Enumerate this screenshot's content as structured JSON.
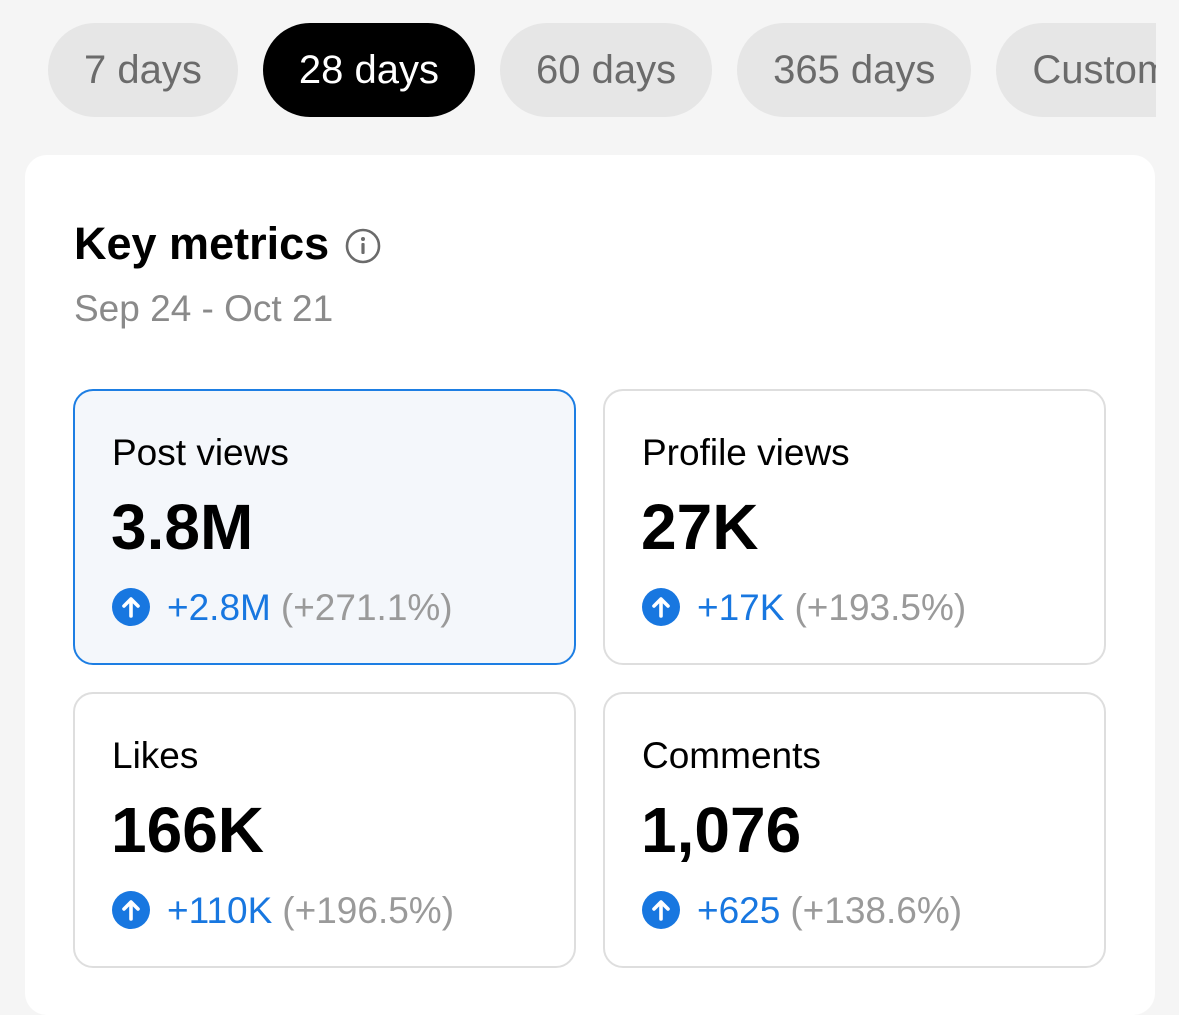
{
  "range_tabs": [
    {
      "label": "7 days",
      "active": false
    },
    {
      "label": "28 days",
      "active": true
    },
    {
      "label": "60 days",
      "active": false
    },
    {
      "label": "365 days",
      "active": false
    },
    {
      "label": "Custom",
      "active": false
    }
  ],
  "key_metrics": {
    "title": "Key metrics",
    "info_icon": "info-icon",
    "date_range": "Sep 24 - Oct 21",
    "metrics": [
      {
        "label": "Post views",
        "value": "3.8M",
        "change": "+2.8M",
        "change_pct": "(+271.1%)",
        "selected": true
      },
      {
        "label": "Profile views",
        "value": "27K",
        "change": "+17K",
        "change_pct": "(+193.5%)",
        "selected": false
      },
      {
        "label": "Likes",
        "value": "166K",
        "change": "+110K",
        "change_pct": "(+196.5%)",
        "selected": false
      },
      {
        "label": "Comments",
        "value": "1,076",
        "change": "+625",
        "change_pct": "(+138.6%)",
        "selected": false
      }
    ]
  },
  "colors": {
    "accent": "#1877e0",
    "selected_border": "#1d7ee3",
    "active_tab_bg": "#000000",
    "tab_bg": "#e6e6e6",
    "muted_text": "#8a8a8a"
  }
}
